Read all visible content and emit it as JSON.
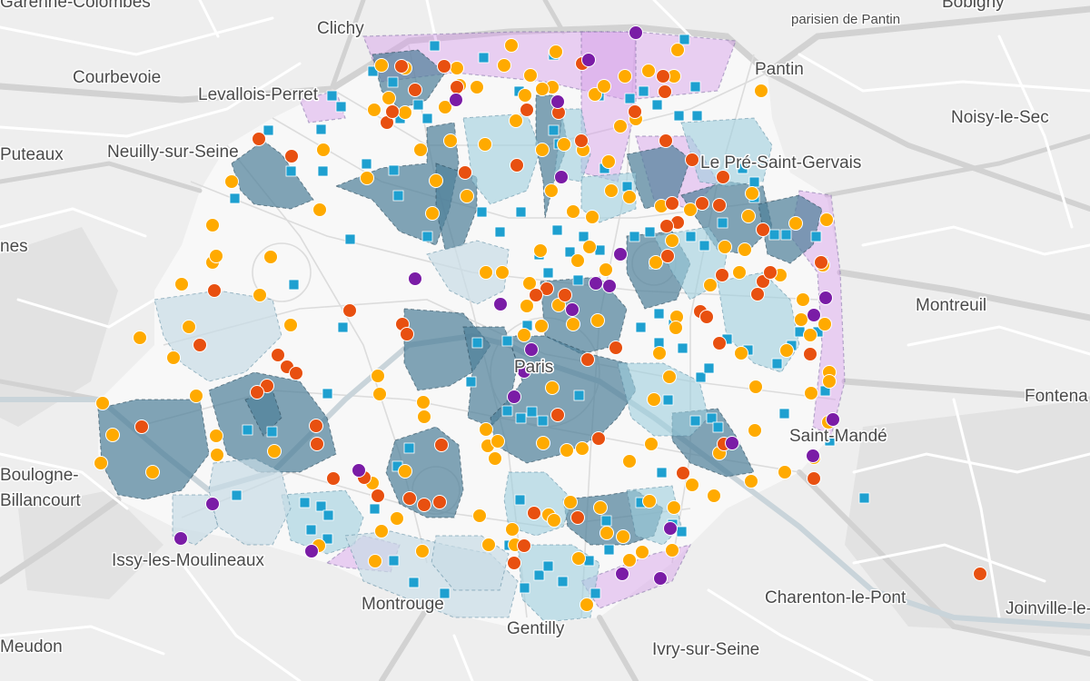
{
  "map": {
    "colors": {
      "land": "#eeeeee",
      "road_major": "#d2d2d2",
      "road_minor": "#ffffff",
      "inner_area": "#f8f8f8",
      "zone_dark": "#4d7f98",
      "zone_light": "#9fcede",
      "zone_pale": "#c7dbe6",
      "zone_purple": "#d49ce8",
      "marker_square": "#1ea0d0",
      "marker_orange": "#ffaa00",
      "marker_red": "#e85010",
      "marker_purple": "#7a1ca6"
    },
    "places": [
      {
        "name": "Clichy"
      },
      {
        "name": "Courbevoie"
      },
      {
        "name": "Levallois-Perret"
      },
      {
        "name": "Puteaux"
      },
      {
        "name": "Neuilly-sur-Seine"
      },
      {
        "name": "Pantin"
      },
      {
        "name": "Bobigny"
      },
      {
        "name": "parisien de Pantin"
      },
      {
        "name": "Noisy-le-Sec"
      },
      {
        "name": "Le Pré-Saint-Gervais"
      },
      {
        "name": "Montreuil"
      },
      {
        "name": "Fontena"
      },
      {
        "name": "Saint-Mandé"
      },
      {
        "name": "Paris"
      },
      {
        "name": "Boulogne-"
      },
      {
        "name": "Billancourt"
      },
      {
        "name": "Issy-les-Moulineaux"
      },
      {
        "name": "Montrouge"
      },
      {
        "name": "Gentilly"
      },
      {
        "name": "Charenton-le-Pont"
      },
      {
        "name": "Joinville-le-"
      },
      {
        "name": "Ivry-sur-Seine"
      },
      {
        "name": "Meudon"
      },
      {
        "name": "nes"
      },
      {
        "name": "Garenne-Colombes"
      }
    ]
  }
}
